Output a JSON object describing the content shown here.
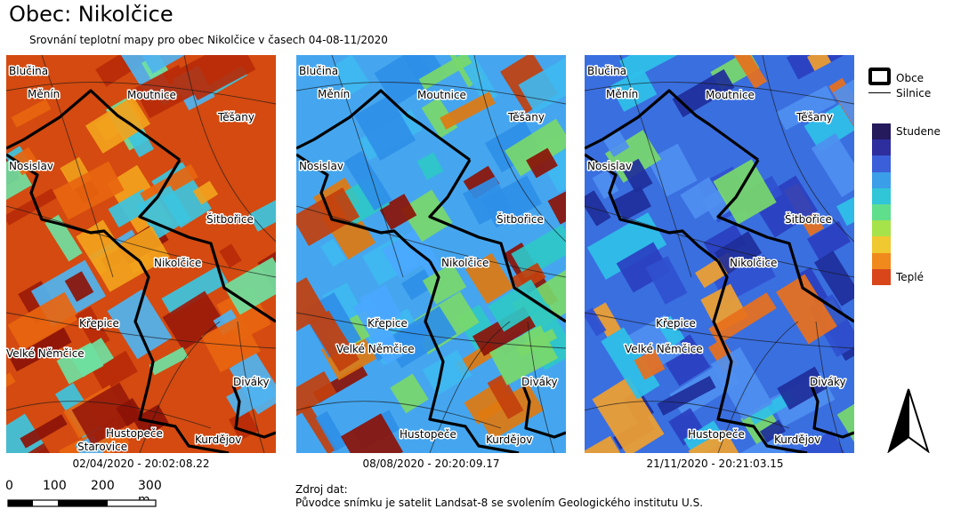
{
  "title": "Obec: Nikolčice",
  "subtitle": "Srovnání teplotní mapy pro obec Nikolčice v časech 04-08-11/2020",
  "maps": [
    {
      "date": "02/04/2020 - 20:02:08.22",
      "base_color": "#d44a10",
      "field_colors": [
        "#8c1208",
        "#b72a08",
        "#e8650f",
        "#3cc4e0",
        "#6fe0a0",
        "#f2a21c",
        "#9a1a0a",
        "#4fb3f0"
      ],
      "labels": {
        "blucina": "Blučina",
        "menin": "Měnín",
        "moutnice": "Moutnice",
        "tesany": "Těšany",
        "nosislav": "Nosislav",
        "sitborice": "Šitbořice",
        "nikolcice": "Nikolčice",
        "krepice": "Křepice",
        "velke_nemcice": "Velké Němčice",
        "divaky": "Diváky",
        "hustopece": "Hustopeče",
        "kurdejov": "Kurdějov",
        "starovice": "Starovice"
      }
    },
    {
      "date": "08/08/2020 - 20:20:09.17",
      "base_color": "#45a6ef",
      "field_colors": [
        "#8c1208",
        "#c2400d",
        "#3fb8f0",
        "#2f8fe8",
        "#7ad86a",
        "#4aa8ff",
        "#e07a10",
        "#2ec8c8"
      ],
      "labels": {
        "blucina": "Blučina",
        "menin": "Měnín",
        "moutnice": "Moutnice",
        "tesany": "Těšany",
        "nosislav": "Nosislav",
        "sitborice": "Šitbořice",
        "nikolcice": "Nikolčice",
        "krepice": "Křepice",
        "velke_nemcice": "Velké Němčice",
        "divaky": "Diváky",
        "hustopece": "Hustopeče",
        "kurdejov": "Kurdějov"
      }
    },
    {
      "date": "21/11/2020 - 20:21:03.15",
      "base_color": "#3a6fe0",
      "field_colors": [
        "#2a3fc0",
        "#4f8ff0",
        "#2fc0e8",
        "#f0a030",
        "#7ad86a",
        "#3050d0",
        "#e8701c",
        "#1e2e9a"
      ],
      "labels": {
        "blucina": "Blučina",
        "menin": "Měnín",
        "moutnice": "Moutnice",
        "tesany": "Těšany",
        "nosislav": "Nosislav",
        "sitborice": "Šitbořice",
        "nikolcice": "Nikolčice",
        "krepice": "Křepice",
        "velke_nemcice": "Velké Němčice",
        "divaky": "Diváky",
        "hustopece": "Hustopeče",
        "kurdejov": "Kurdějov"
      }
    }
  ],
  "legend": {
    "obce": "Obce",
    "silnice": "Silnice",
    "cold": "Studene",
    "warm": "Teplé",
    "ramp_colors": [
      "#241a5c",
      "#2e2e9e",
      "#3b5fd8",
      "#3a9ee8",
      "#30c6d8",
      "#5fde8c",
      "#a6e24a",
      "#f0c830",
      "#f08a1c",
      "#d8461a"
    ]
  },
  "scale": {
    "ticks": [
      "0",
      "100",
      "200",
      "300 m"
    ]
  },
  "source": {
    "title": "Zdroj dat:",
    "text": "Původce snímku je satelit Landsat-8 se svolením Geologického institutu U.S."
  },
  "north_arrow": "north-arrow-icon"
}
